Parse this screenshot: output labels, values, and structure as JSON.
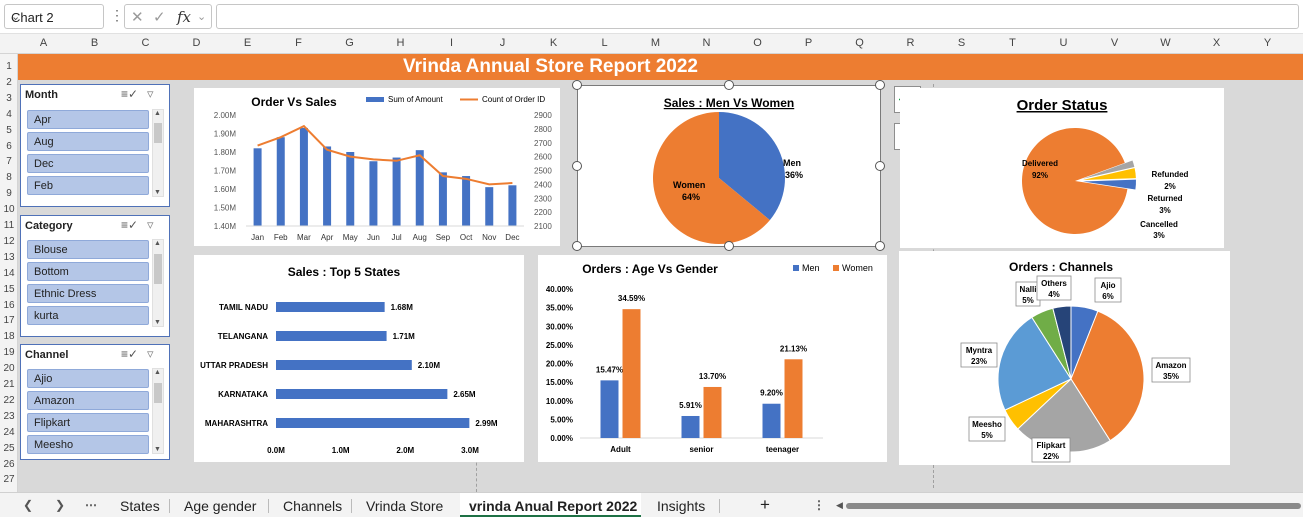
{
  "formula_bar": {
    "name_box": "Chart 2",
    "fx": "fx",
    "formula": ""
  },
  "columns": [
    "A",
    "B",
    "C",
    "D",
    "E",
    "F",
    "G",
    "H",
    "I",
    "J",
    "K",
    "L",
    "M",
    "N",
    "O",
    "P",
    "Q",
    "R",
    "S",
    "T",
    "U",
    "V",
    "W",
    "X",
    "Y"
  ],
  "rows": [
    "1",
    "2",
    "3",
    "4",
    "5",
    "6",
    "7",
    "8",
    "9",
    "10",
    "11",
    "12",
    "13",
    "14",
    "15",
    "16",
    "17",
    "18",
    "19",
    "20",
    "21",
    "22",
    "23",
    "24",
    "25",
    "26",
    "27"
  ],
  "banner": {
    "title": "Vrinda Annual Store Report 2022",
    "color": "#ed7d31"
  },
  "slicers": [
    {
      "header": "Month",
      "items": [
        "Apr",
        "Aug",
        "Dec",
        "Feb"
      ]
    },
    {
      "header": "Category",
      "items": [
        "Blouse",
        "Bottom",
        "Ethnic Dress",
        "kurta"
      ]
    },
    {
      "header": "Channel",
      "items": [
        "Ajio",
        "Amazon",
        "Flipkart",
        "Meesho"
      ]
    }
  ],
  "chart_data": [
    {
      "type": "bar",
      "title": "Order Vs Sales",
      "categories": [
        "Jan",
        "Feb",
        "Mar",
        "Apr",
        "May",
        "Jun",
        "Jul",
        "Aug",
        "Sep",
        "Oct",
        "Nov",
        "Dec"
      ],
      "series": [
        {
          "name": "Sum of Amount",
          "type": "bar",
          "axis": "left",
          "color": "#4472c4",
          "values": [
            1.82,
            1.88,
            1.93,
            1.83,
            1.8,
            1.75,
            1.77,
            1.81,
            1.69,
            1.67,
            1.61,
            1.62
          ]
        },
        {
          "name": "Count of Order ID",
          "type": "line",
          "axis": "right",
          "color": "#ed7d31",
          "values": [
            2680,
            2740,
            2820,
            2650,
            2600,
            2580,
            2570,
            2610,
            2460,
            2440,
            2400,
            2410
          ]
        }
      ],
      "y_left": {
        "ticks": [
          "1.40M",
          "1.50M",
          "1.60M",
          "1.70M",
          "1.80M",
          "1.90M",
          "2.00M"
        ],
        "ylim": [
          1.4,
          2.0
        ]
      },
      "y_right": {
        "ticks": [
          "2100",
          "2200",
          "2300",
          "2400",
          "2500",
          "2600",
          "2700",
          "2800",
          "2900"
        ],
        "ylim": [
          2100,
          2900
        ]
      }
    },
    {
      "type": "pie",
      "title": "Sales : Men Vs Women",
      "slices": [
        {
          "label": "Men",
          "value": 36,
          "text": "36%",
          "color": "#4472c4"
        },
        {
          "label": "Women",
          "value": 64,
          "text": "64%",
          "color": "#ed7d31"
        }
      ]
    },
    {
      "type": "pie",
      "title": "Order Status",
      "slices": [
        {
          "label": "Delivered",
          "value": 92,
          "text": "92%",
          "color": "#ed7d31"
        },
        {
          "label": "Refunded",
          "value": 2,
          "text": "2%",
          "color": "#a5a5a5"
        },
        {
          "label": "Returned",
          "value": 3,
          "text": "3%",
          "color": "#ffc000"
        },
        {
          "label": "Cancelled",
          "value": 3,
          "text": "3%",
          "color": "#4472c4"
        }
      ]
    },
    {
      "type": "bar",
      "orientation": "horizontal",
      "title": "Sales : Top 5 States",
      "categories": [
        "TAMIL NADU",
        "TELANGANA",
        "UTTAR PRADESH",
        "KARNATAKA",
        "MAHARASHTRA"
      ],
      "values": [
        1.68,
        1.71,
        2.1,
        2.65,
        2.99
      ],
      "value_labels": [
        "1.68M",
        "1.71M",
        "2.10M",
        "2.65M",
        "2.99M"
      ],
      "x_ticks": [
        "0.0M",
        "1.0M",
        "2.0M",
        "3.0M"
      ],
      "xlim": [
        0,
        3.0
      ],
      "color": "#4472c4"
    },
    {
      "type": "bar",
      "title": "Orders : Age Vs Gender",
      "categories": [
        "Adult",
        "senior",
        "teenager"
      ],
      "series": [
        {
          "name": "Men",
          "color": "#4472c4",
          "values": [
            15.47,
            5.91,
            9.2
          ],
          "labels": [
            "15.47%",
            "5.91%",
            "9.20%"
          ]
        },
        {
          "name": "Women",
          "color": "#ed7d31",
          "values": [
            34.59,
            13.7,
            21.13
          ],
          "labels": [
            "34.59%",
            "13.70%",
            "21.13%"
          ]
        }
      ],
      "y_ticks": [
        "0.00%",
        "5.00%",
        "10.00%",
        "15.00%",
        "20.00%",
        "25.00%",
        "30.00%",
        "35.00%",
        "40.00%"
      ],
      "ylim": [
        0,
        40
      ]
    },
    {
      "type": "pie",
      "title": "Orders : Channels",
      "slices": [
        {
          "label": "Ajio",
          "value": 6,
          "text": "6%",
          "color": "#4472c4"
        },
        {
          "label": "Amazon",
          "value": 35,
          "text": "35%",
          "color": "#ed7d31"
        },
        {
          "label": "Flipkart",
          "value": 22,
          "text": "22%",
          "color": "#a5a5a5"
        },
        {
          "label": "Meesho",
          "value": 5,
          "text": "5%",
          "color": "#ffc000"
        },
        {
          "label": "Myntra",
          "value": 23,
          "text": "23%",
          "color": "#5b9bd5"
        },
        {
          "label": "Nalli",
          "value": 5,
          "text": "5%",
          "color": "#70ad47"
        },
        {
          "label": "Others",
          "value": 4,
          "text": "4%",
          "color": "#264478"
        }
      ]
    }
  ],
  "tabs": {
    "items": [
      "States",
      "Age gender",
      "Channels",
      "Vrinda Store",
      "vrinda Anual Report 2022",
      "Insights"
    ],
    "active": "vrinda Anual Report 2022",
    "add": "+"
  }
}
